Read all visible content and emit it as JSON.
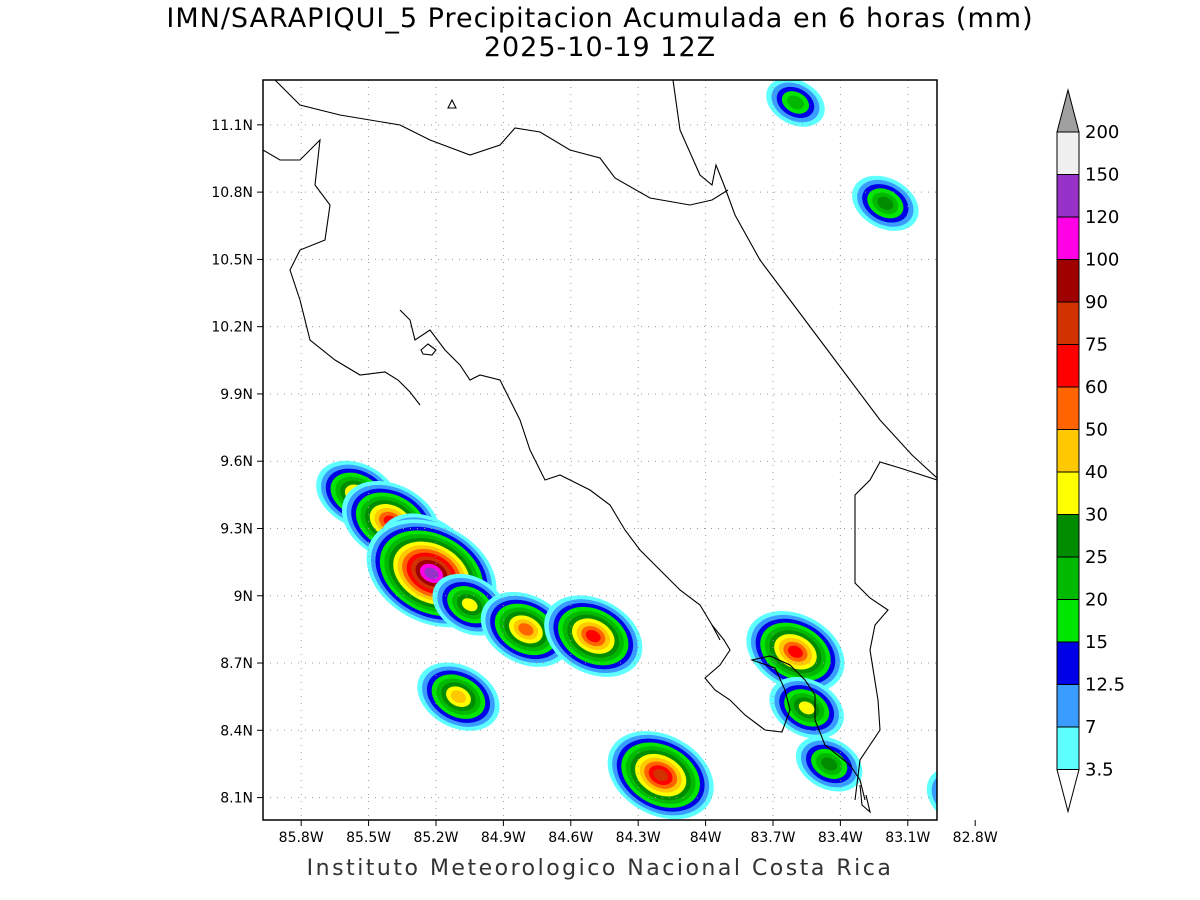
{
  "map": {
    "title_line1": "IMN/SARAPIQUI_5 Precipitacion Acumulada en 6 horas (mm)",
    "title_line2": "2025-10-19 12Z",
    "footer": "Instituto Meteorologico Nacional Costa Rica",
    "region": "Costa Rica",
    "lon_ticks": [
      "85.8W",
      "85.5W",
      "85.2W",
      "84.9W",
      "84.6W",
      "84.3W",
      "84W",
      "83.7W",
      "83.4W",
      "83.1W",
      "82.8W"
    ],
    "lat_ticks": [
      "11.1N",
      "10.8N",
      "10.5N",
      "10.2N",
      "9.9N",
      "9.6N",
      "9.3N",
      "9N",
      "8.7N",
      "8.4N",
      "8.1N"
    ],
    "lon_values": [
      -85.8,
      -85.5,
      -85.2,
      -84.9,
      -84.6,
      -84.3,
      -84.0,
      -83.7,
      -83.4,
      -83.1,
      -82.8
    ],
    "lat_values": [
      11.1,
      10.8,
      10.5,
      10.2,
      9.9,
      9.6,
      9.3,
      9.0,
      8.7,
      8.4,
      8.1
    ],
    "extent": {
      "lon_min": -85.97,
      "lon_max": -82.97,
      "lat_min": 8.0,
      "lat_max": 11.3
    },
    "colorbar": {
      "levels": [
        "3.5",
        "7",
        "12.5",
        "15",
        "20",
        "25",
        "30",
        "40",
        "50",
        "60",
        "75",
        "90",
        "100",
        "120",
        "150",
        "200"
      ],
      "colors": [
        "#5effff",
        "#3a9cff",
        "#0000e6",
        "#00e600",
        "#00b900",
        "#008c00",
        "#ffff00",
        "#ffc800",
        "#ff6400",
        "#ff0000",
        "#d23200",
        "#a00000",
        "#ff00e6",
        "#9632c8",
        "#f0f0f0",
        "#a0a0a0"
      ]
    },
    "precip_cells": [
      {
        "lon": -85.55,
        "lat": 9.45,
        "intensity": 40
      },
      {
        "lon": -85.4,
        "lat": 9.33,
        "intensity": 60
      },
      {
        "lon": -85.25,
        "lat": 9.2,
        "intensity": 50
      },
      {
        "lon": -85.22,
        "lat": 9.1,
        "intensity": 120
      },
      {
        "lon": -85.05,
        "lat": 8.96,
        "intensity": 30
      },
      {
        "lon": -84.8,
        "lat": 8.85,
        "intensity": 50
      },
      {
        "lon": -84.5,
        "lat": 8.82,
        "intensity": 60
      },
      {
        "lon": -85.1,
        "lat": 8.55,
        "intensity": 40
      },
      {
        "lon": -84.2,
        "lat": 8.2,
        "intensity": 75
      },
      {
        "lon": -83.6,
        "lat": 8.75,
        "intensity": 60
      },
      {
        "lon": -83.55,
        "lat": 8.5,
        "intensity": 30
      },
      {
        "lon": -83.45,
        "lat": 8.25,
        "intensity": 25
      },
      {
        "lon": -82.85,
        "lat": 8.1,
        "intensity": 30
      },
      {
        "lon": -83.6,
        "lat": 11.2,
        "intensity": 20
      },
      {
        "lon": -83.2,
        "lat": 10.75,
        "intensity": 25
      }
    ]
  }
}
